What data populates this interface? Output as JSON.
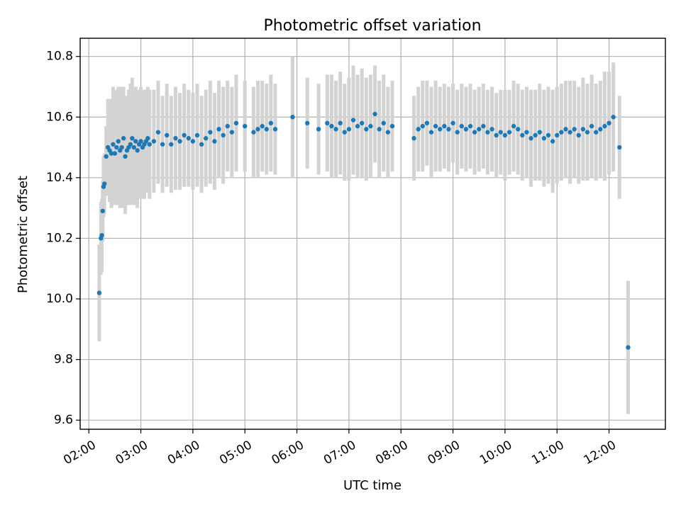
{
  "chart_data": {
    "type": "scatter",
    "title": "Photometric offset variation",
    "xlabel": "UTC time",
    "ylabel": "Photometric offset",
    "x_tick_labels": [
      "02:00",
      "03:00",
      "04:00",
      "05:00",
      "06:00",
      "07:00",
      "08:00",
      "09:00",
      "10:00",
      "11:00",
      "12:00"
    ],
    "y_ticks": [
      9.6,
      9.8,
      10.0,
      10.2,
      10.4,
      10.6,
      10.8
    ],
    "y_tick_labels": [
      "9.6",
      "9.8",
      "10.0",
      "10.2",
      "10.4",
      "10.6",
      "10.8"
    ],
    "xlim": [
      "01:50",
      "13:05"
    ],
    "ylim": [
      9.57,
      10.86
    ],
    "grid": true,
    "marker_color": "#1f77b4",
    "errorbar_color": "#d3d3d3",
    "series": [
      {
        "x": [
          "02:12",
          "02:14",
          "02:15",
          "02:16",
          "02:17",
          "02:18",
          "02:20",
          "02:22",
          "02:24",
          "02:26",
          "02:28",
          "02:30",
          "02:32",
          "02:34",
          "02:36",
          "02:38",
          "02:40",
          "02:42",
          "02:44",
          "02:46",
          "02:48",
          "02:50",
          "02:52",
          "02:54",
          "02:56",
          "02:58",
          "03:00",
          "03:02",
          "03:04",
          "03:06",
          "03:08",
          "03:10",
          "03:15",
          "03:20",
          "03:25",
          "03:30",
          "03:35",
          "03:40",
          "03:45",
          "03:50",
          "03:55",
          "04:00",
          "04:05",
          "04:10",
          "04:15",
          "04:20",
          "04:25",
          "04:30",
          "04:35",
          "04:40",
          "04:45",
          "04:50",
          "05:00",
          "05:10",
          "05:15",
          "05:20",
          "05:25",
          "05:30",
          "05:35",
          "05:55",
          "06:12",
          "06:25",
          "06:35",
          "06:40",
          "06:45",
          "06:50",
          "06:55",
          "07:00",
          "07:05",
          "07:10",
          "07:15",
          "07:20",
          "07:25",
          "07:30",
          "07:35",
          "07:40",
          "07:45",
          "07:50",
          "08:15",
          "08:20",
          "08:25",
          "08:30",
          "08:35",
          "08:40",
          "08:45",
          "08:50",
          "08:55",
          "09:00",
          "09:05",
          "09:10",
          "09:15",
          "09:20",
          "09:25",
          "09:30",
          "09:35",
          "09:40",
          "09:45",
          "09:50",
          "09:55",
          "10:00",
          "10:05",
          "10:10",
          "10:15",
          "10:20",
          "10:25",
          "10:30",
          "10:35",
          "10:40",
          "10:45",
          "10:50",
          "10:55",
          "11:00",
          "11:05",
          "11:10",
          "11:15",
          "11:20",
          "11:25",
          "11:30",
          "11:35",
          "11:40",
          "11:45",
          "11:50",
          "11:55",
          "12:00",
          "12:05",
          "12:12",
          "12:22"
        ],
        "y": [
          10.02,
          10.2,
          10.21,
          10.29,
          10.37,
          10.38,
          10.47,
          10.5,
          10.49,
          10.48,
          10.51,
          10.48,
          10.5,
          10.52,
          10.49,
          10.5,
          10.53,
          10.47,
          10.49,
          10.5,
          10.51,
          10.53,
          10.5,
          10.52,
          10.49,
          10.51,
          10.52,
          10.5,
          10.51,
          10.52,
          10.53,
          10.51,
          10.52,
          10.55,
          10.51,
          10.54,
          10.51,
          10.53,
          10.52,
          10.54,
          10.53,
          10.52,
          10.54,
          10.51,
          10.53,
          10.55,
          10.52,
          10.56,
          10.54,
          10.57,
          10.55,
          10.58,
          10.57,
          10.55,
          10.56,
          10.57,
          10.56,
          10.58,
          10.56,
          10.6,
          10.58,
          10.56,
          10.58,
          10.57,
          10.56,
          10.58,
          10.55,
          10.56,
          10.59,
          10.57,
          10.58,
          10.56,
          10.57,
          10.61,
          10.56,
          10.58,
          10.55,
          10.57,
          10.53,
          10.56,
          10.57,
          10.58,
          10.55,
          10.57,
          10.56,
          10.57,
          10.56,
          10.58,
          10.55,
          10.57,
          10.56,
          10.57,
          10.55,
          10.56,
          10.57,
          10.55,
          10.56,
          10.54,
          10.55,
          10.54,
          10.55,
          10.57,
          10.56,
          10.54,
          10.55,
          10.53,
          10.54,
          10.55,
          10.53,
          10.54,
          10.52,
          10.54,
          10.55,
          10.56,
          10.55,
          10.56,
          10.54,
          10.56,
          10.55,
          10.57,
          10.55,
          10.56,
          10.57,
          10.58,
          10.6,
          10.5,
          9.84
        ],
        "yerr": [
          0.16,
          0.12,
          0.12,
          0.1,
          0.1,
          0.1,
          0.1,
          0.16,
          0.17,
          0.18,
          0.19,
          0.17,
          0.19,
          0.18,
          0.19,
          0.2,
          0.17,
          0.19,
          0.18,
          0.19,
          0.2,
          0.2,
          0.19,
          0.18,
          0.19,
          0.18,
          0.18,
          0.17,
          0.18,
          0.17,
          0.17,
          0.18,
          0.17,
          0.17,
          0.16,
          0.17,
          0.16,
          0.17,
          0.16,
          0.17,
          0.16,
          0.16,
          0.17,
          0.16,
          0.16,
          0.17,
          0.16,
          0.16,
          0.16,
          0.15,
          0.15,
          0.16,
          0.15,
          0.15,
          0.16,
          0.15,
          0.15,
          0.16,
          0.15,
          0.2,
          0.15,
          0.15,
          0.16,
          0.17,
          0.16,
          0.17,
          0.16,
          0.17,
          0.18,
          0.17,
          0.18,
          0.17,
          0.17,
          0.16,
          0.16,
          0.16,
          0.15,
          0.15,
          0.14,
          0.14,
          0.15,
          0.14,
          0.15,
          0.15,
          0.14,
          0.14,
          0.14,
          0.13,
          0.14,
          0.14,
          0.14,
          0.14,
          0.14,
          0.14,
          0.14,
          0.14,
          0.14,
          0.14,
          0.14,
          0.15,
          0.14,
          0.15,
          0.15,
          0.15,
          0.15,
          0.16,
          0.15,
          0.16,
          0.16,
          0.16,
          0.17,
          0.16,
          0.16,
          0.16,
          0.17,
          0.16,
          0.16,
          0.17,
          0.16,
          0.17,
          0.16,
          0.16,
          0.18,
          0.17,
          0.18,
          0.17,
          0.22
        ]
      }
    ]
  }
}
